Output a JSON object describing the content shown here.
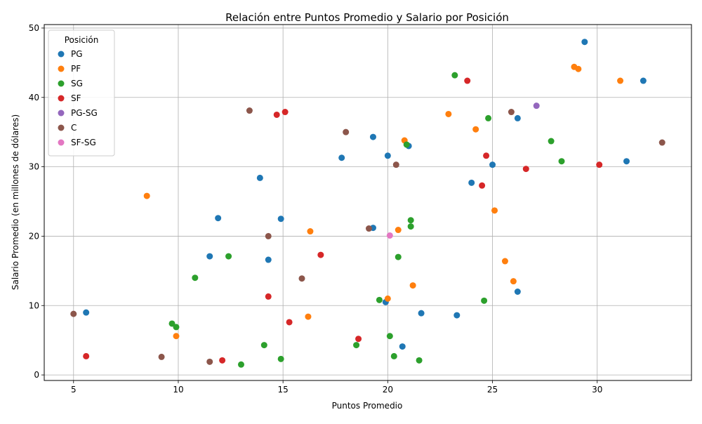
{
  "chart_data": {
    "type": "scatter",
    "title": "Relación entre Puntos Promedio y Salario por Posición",
    "xlabel": "Puntos Promedio",
    "ylabel": "Salario Promedio (en millones de dólares)",
    "xlim": [
      3.6,
      34.5
    ],
    "ylim": [
      -0.8,
      50.5
    ],
    "xticks": [
      5,
      10,
      15,
      20,
      25,
      30
    ],
    "yticks": [
      0,
      10,
      20,
      30,
      40,
      50
    ],
    "grid": true,
    "legend": {
      "title": "Posición",
      "placement": "upper-left"
    },
    "series": [
      {
        "name": "PG",
        "color": "#1f77b4",
        "points": [
          [
            5.6,
            9.0
          ],
          [
            11.5,
            17.1
          ],
          [
            11.9,
            22.6
          ],
          [
            13.9,
            28.4
          ],
          [
            14.3,
            16.6
          ],
          [
            14.9,
            22.5
          ],
          [
            17.8,
            31.3
          ],
          [
            19.3,
            34.3
          ],
          [
            19.3,
            21.2
          ],
          [
            19.9,
            10.5
          ],
          [
            20.0,
            31.6
          ],
          [
            20.7,
            4.1
          ],
          [
            21.0,
            33.0
          ],
          [
            21.6,
            8.9
          ],
          [
            23.3,
            8.6
          ],
          [
            24.0,
            27.7
          ],
          [
            25.0,
            30.3
          ],
          [
            26.2,
            37.0
          ],
          [
            26.2,
            12.0
          ],
          [
            29.4,
            48.0
          ],
          [
            31.4,
            30.8
          ],
          [
            32.2,
            42.4
          ]
        ]
      },
      {
        "name": "PF",
        "color": "#ff7f0e",
        "points": [
          [
            8.5,
            25.8
          ],
          [
            9.9,
            5.6
          ],
          [
            16.2,
            8.4
          ],
          [
            16.3,
            20.7
          ],
          [
            20.0,
            11.0
          ],
          [
            20.5,
            20.9
          ],
          [
            20.8,
            33.8
          ],
          [
            21.2,
            12.9
          ],
          [
            22.9,
            37.6
          ],
          [
            24.2,
            35.4
          ],
          [
            25.1,
            23.7
          ],
          [
            25.6,
            16.4
          ],
          [
            26.0,
            13.5
          ],
          [
            28.9,
            44.4
          ],
          [
            29.1,
            44.1
          ],
          [
            31.1,
            42.4
          ]
        ]
      },
      {
        "name": "SG",
        "color": "#2ca02c",
        "points": [
          [
            9.7,
            7.4
          ],
          [
            9.9,
            6.9
          ],
          [
            10.8,
            14.0
          ],
          [
            12.4,
            17.1
          ],
          [
            13.0,
            1.5
          ],
          [
            14.1,
            4.3
          ],
          [
            14.9,
            2.3
          ],
          [
            18.5,
            4.3
          ],
          [
            19.6,
            10.8
          ],
          [
            20.1,
            5.6
          ],
          [
            20.3,
            2.7
          ],
          [
            20.5,
            17.0
          ],
          [
            20.9,
            33.2
          ],
          [
            21.1,
            22.3
          ],
          [
            21.1,
            21.4
          ],
          [
            21.5,
            2.1
          ],
          [
            23.2,
            43.2
          ],
          [
            24.6,
            10.7
          ],
          [
            24.8,
            37.0
          ],
          [
            27.8,
            33.7
          ],
          [
            28.3,
            30.8
          ]
        ]
      },
      {
        "name": "SF",
        "color": "#d62728",
        "points": [
          [
            5.6,
            2.7
          ],
          [
            12.1,
            2.1
          ],
          [
            14.3,
            11.3
          ],
          [
            14.7,
            37.5
          ],
          [
            15.1,
            37.9
          ],
          [
            15.3,
            7.6
          ],
          [
            16.8,
            17.3
          ],
          [
            18.6,
            5.2
          ],
          [
            23.8,
            42.4
          ],
          [
            24.5,
            27.3
          ],
          [
            24.7,
            31.6
          ],
          [
            26.6,
            29.7
          ],
          [
            30.1,
            30.3
          ]
        ]
      },
      {
        "name": "PG-SG",
        "color": "#9467bd",
        "points": [
          [
            27.1,
            38.8
          ]
        ]
      },
      {
        "name": "C",
        "color": "#8c564b",
        "points": [
          [
            5.0,
            8.8
          ],
          [
            9.2,
            2.6
          ],
          [
            11.5,
            1.9
          ],
          [
            13.4,
            38.1
          ],
          [
            14.3,
            20.0
          ],
          [
            15.9,
            13.9
          ],
          [
            18.0,
            35.0
          ],
          [
            19.1,
            21.1
          ],
          [
            20.4,
            30.3
          ],
          [
            25.9,
            37.9
          ],
          [
            33.1,
            33.5
          ]
        ]
      },
      {
        "name": "SF-SG",
        "color": "#e377c2",
        "points": [
          [
            20.1,
            20.1
          ]
        ]
      }
    ]
  }
}
